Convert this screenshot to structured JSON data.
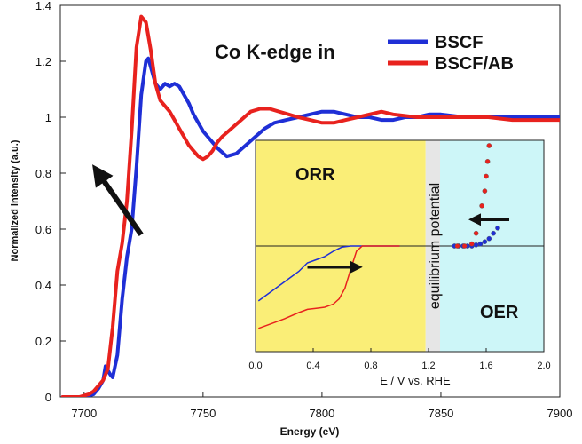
{
  "chart_data": [
    {
      "type": "line",
      "title": "Co K-edge in",
      "xlabel": "Energy (eV)",
      "ylabel": "Normalized intensity (a.u.)",
      "xlim": [
        7690,
        7900
      ],
      "ylim": [
        0,
        1.4
      ],
      "xticks": [
        7700,
        7750,
        7800,
        7850,
        7900
      ],
      "yticks": [
        0,
        0.2,
        0.4,
        0.6,
        0.8,
        1,
        1.2,
        1.4
      ],
      "xtick_labels": [
        "7700",
        "7750",
        "7800",
        "7850",
        "7900"
      ],
      "ytick_labels": [
        "0",
        "0.2",
        "0.4",
        "0.6",
        "0.8",
        "1",
        "1.2",
        "1.4"
      ],
      "legend": [
        {
          "name": "BSCF",
          "color": "#1f2fd6"
        },
        {
          "name": "BSCF/AB",
          "color": "#e8221e"
        }
      ],
      "arrow": {
        "from": [
          7724,
          0.58
        ],
        "to": [
          7706,
          0.8
        ]
      },
      "series": [
        {
          "name": "BSCF",
          "color": "#1f2fd6",
          "x": [
            7691,
            7700,
            7704,
            7706,
            7708,
            7709,
            7711,
            7712,
            7714,
            7716,
            7718,
            7720,
            7722,
            7724,
            7726,
            7727,
            7728,
            7730,
            7732,
            7734,
            7736,
            7738,
            7740,
            7742,
            7744,
            7746,
            7748,
            7750,
            7752,
            7756,
            7760,
            7764,
            7768,
            7772,
            7776,
            7780,
            7785,
            7790,
            7795,
            7800,
            7805,
            7810,
            7815,
            7820,
            7825,
            7830,
            7835,
            7840,
            7845,
            7850,
            7860,
            7870,
            7880,
            7890,
            7900
          ],
          "y": [
            0.0,
            0.0,
            0.01,
            0.03,
            0.06,
            0.11,
            0.08,
            0.07,
            0.15,
            0.35,
            0.5,
            0.6,
            0.82,
            1.08,
            1.2,
            1.21,
            1.18,
            1.12,
            1.1,
            1.12,
            1.11,
            1.12,
            1.11,
            1.08,
            1.05,
            1.01,
            0.98,
            0.95,
            0.93,
            0.89,
            0.86,
            0.87,
            0.9,
            0.93,
            0.96,
            0.98,
            0.99,
            1.0,
            1.01,
            1.02,
            1.02,
            1.01,
            1.0,
            1.0,
            0.99,
            0.99,
            1.0,
            1.0,
            1.01,
            1.01,
            1.0,
            1.0,
            1.0,
            1.0,
            1.0
          ]
        },
        {
          "name": "BSCF/AB",
          "color": "#e8221e",
          "x": [
            7691,
            7698,
            7702,
            7704,
            7706,
            7708,
            7710,
            7712,
            7714,
            7716,
            7718,
            7720,
            7722,
            7724,
            7726,
            7728,
            7730,
            7732,
            7734,
            7736,
            7738,
            7740,
            7742,
            7744,
            7746,
            7748,
            7750,
            7752,
            7754,
            7756,
            7758,
            7762,
            7766,
            7770,
            7774,
            7778,
            7782,
            7786,
            7790,
            7795,
            7800,
            7805,
            7810,
            7815,
            7820,
            7825,
            7830,
            7840,
            7850,
            7860,
            7870,
            7880,
            7890,
            7900
          ],
          "y": [
            0.0,
            0.0,
            0.01,
            0.02,
            0.04,
            0.06,
            0.1,
            0.25,
            0.45,
            0.55,
            0.7,
            0.95,
            1.25,
            1.36,
            1.34,
            1.24,
            1.12,
            1.06,
            1.04,
            1.02,
            0.99,
            0.96,
            0.93,
            0.9,
            0.88,
            0.86,
            0.85,
            0.86,
            0.88,
            0.91,
            0.93,
            0.96,
            0.99,
            1.02,
            1.03,
            1.03,
            1.02,
            1.01,
            1.0,
            0.99,
            0.98,
            0.98,
            0.99,
            1.0,
            1.01,
            1.02,
            1.01,
            1.0,
            1.0,
            1.0,
            1.0,
            0.99,
            0.99,
            0.99
          ]
        }
      ]
    },
    {
      "type": "line",
      "xlabel": "E  /  V vs. RHE",
      "xlim": [
        0.0,
        2.0
      ],
      "xticks": [
        0.0,
        0.4,
        0.8,
        1.2,
        1.6,
        2.0
      ],
      "xtick_labels": [
        "0.0",
        "0.4",
        "0.8",
        "1.2",
        "1.6",
        "2.0"
      ],
      "ylim": [
        -1.0,
        1.0
      ],
      "zero_line": 0,
      "equilibrium_potential": 1.23,
      "regions": [
        {
          "name": "ORR",
          "from": 0.0,
          "to": 1.18,
          "color": "#faee77"
        },
        {
          "name": "equilibrium potential",
          "from": 1.18,
          "to": 1.28,
          "color": "#e6e6e6"
        },
        {
          "name": "OER",
          "from": 1.28,
          "to": 2.0,
          "color": "#cdf6f8"
        }
      ],
      "labels": {
        "orr": "ORR",
        "oer": "OER",
        "equilibrium": "equilibrium potential"
      },
      "arrows": [
        {
          "from": [
            0.36,
            -0.2
          ],
          "to": [
            0.7,
            -0.2
          ]
        },
        {
          "from": [
            1.76,
            0.25
          ],
          "to": [
            1.52,
            0.25
          ]
        }
      ],
      "series": [
        {
          "name": "BSCF",
          "color": "#1f2fd6",
          "x": [
            0.02,
            0.1,
            0.2,
            0.3,
            0.36,
            0.42,
            0.48,
            0.54,
            0.6,
            0.66,
            0.72,
            0.78,
            0.85,
            0.95,
            1.0
          ],
          "y": [
            -0.52,
            -0.44,
            -0.34,
            -0.24,
            -0.16,
            -0.13,
            -0.1,
            -0.05,
            -0.01,
            0.0,
            0.0,
            0.0,
            0.0,
            0.0,
            0.0
          ]
        },
        {
          "name": "BSCF/AB",
          "color": "#e8221e",
          "x": [
            0.02,
            0.1,
            0.2,
            0.3,
            0.36,
            0.42,
            0.48,
            0.54,
            0.58,
            0.62,
            0.66,
            0.7,
            0.74,
            0.8,
            0.9,
            1.0
          ],
          "y": [
            -0.78,
            -0.74,
            -0.69,
            -0.63,
            -0.6,
            -0.59,
            -0.58,
            -0.55,
            -0.5,
            -0.4,
            -0.22,
            -0.05,
            0.0,
            0.0,
            0.0,
            0.0
          ]
        }
      ],
      "markers": [
        {
          "name": "BSCF",
          "color": "#1f2fd6",
          "x": [
            1.38,
            1.41,
            1.44,
            1.47,
            1.5,
            1.53,
            1.56,
            1.59,
            1.62,
            1.65,
            1.68
          ],
          "y": [
            0.0,
            0.0,
            0.0,
            0.0,
            0.0,
            0.01,
            0.02,
            0.04,
            0.07,
            0.12,
            0.17
          ]
        },
        {
          "name": "BSCF/AB",
          "color": "#e8221e",
          "x": [
            1.4,
            1.45,
            1.5,
            1.53,
            1.55,
            1.57,
            1.59,
            1.6,
            1.61,
            1.62
          ],
          "y": [
            0.0,
            0.0,
            0.02,
            0.12,
            0.25,
            0.38,
            0.52,
            0.66,
            0.8,
            0.95
          ]
        }
      ]
    }
  ]
}
